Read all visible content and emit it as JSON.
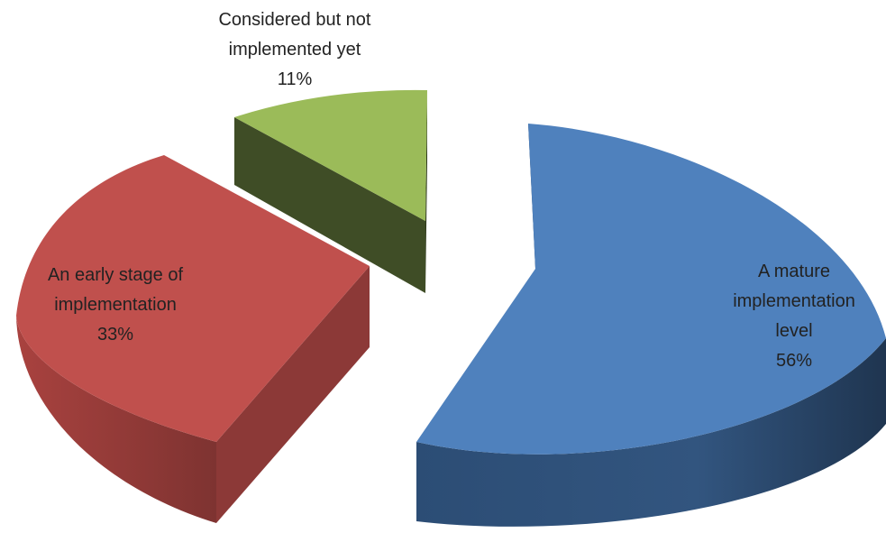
{
  "chart_data": {
    "type": "pie",
    "style": "3d-exploded",
    "title": "",
    "slices": [
      {
        "label_lines": [
          "A mature",
          "implementation",
          "level"
        ],
        "percent_text": "56%",
        "value": 56,
        "top_color": "#4F81BD",
        "side_color": "#2C4D75",
        "side_dark": "#1F3550"
      },
      {
        "label_lines": [
          "An early stage of",
          "implementation"
        ],
        "percent_text": "33%",
        "value": 33,
        "top_color": "#C0504D",
        "side_color": "#963C3A",
        "side_dark": "#6E2B2A"
      },
      {
        "label_lines": [
          "Considered but not",
          "implemented yet"
        ],
        "percent_text": "11%",
        "value": 11,
        "top_color": "#9BBB59",
        "side_color": "#3F4D26",
        "side_dark": "#2F3A1C"
      }
    ]
  }
}
